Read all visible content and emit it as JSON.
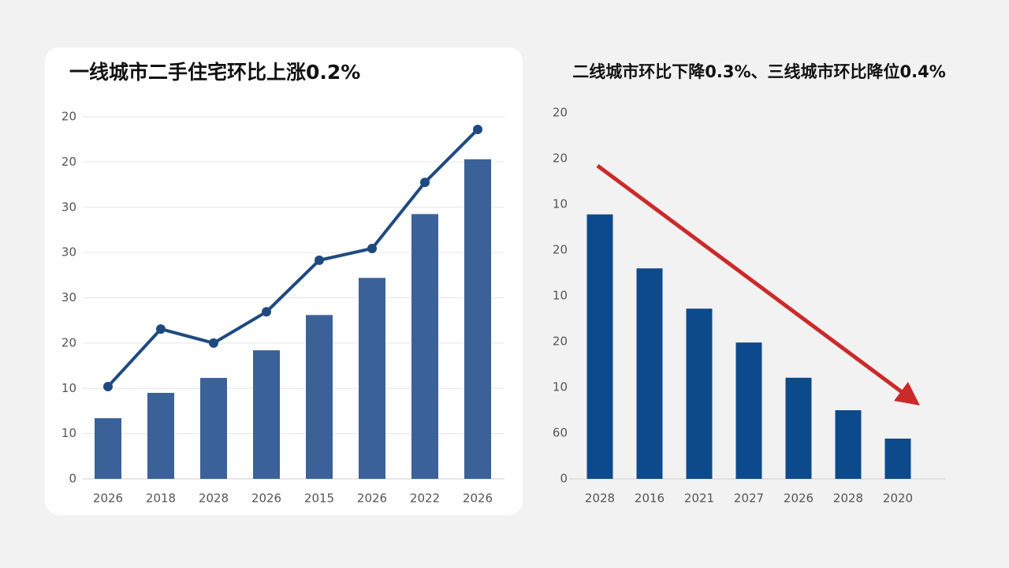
{
  "chart_data": [
    {
      "type": "bar",
      "title": "一线城市二手住宅环比上涨0.2%",
      "categories": [
        "2026",
        "2018",
        "2028",
        "2026",
        "2015",
        "2026",
        "2022",
        "2026"
      ],
      "series": [
        {
          "type": "bar",
          "color": "#3a6298",
          "values": [
            1.34,
            1.9,
            2.23,
            2.84,
            3.62,
            4.44,
            5.85,
            7.06
          ]
        },
        {
          "type": "line",
          "color": "#1f4a80",
          "values": [
            2.04,
            3.31,
            3.0,
            3.69,
            4.83,
            5.09,
            6.55,
            7.72
          ]
        }
      ],
      "ylim": [
        0,
        8
      ],
      "yticks": [
        0,
        {
          "value": 1,
          "label": "10"
        },
        {
          "value": 2,
          "label": "10"
        },
        {
          "value": 3,
          "label": "20"
        },
        {
          "value": 4,
          "label": "30"
        },
        {
          "value": 5,
          "label": "30"
        },
        {
          "value": 6,
          "label": "30"
        },
        {
          "value": 7,
          "label": "20"
        },
        {
          "value": 8,
          "label": "20"
        }
      ],
      "grid": true
    },
    {
      "type": "bar",
      "title": "二线城市环比下降0.3%、三线城市环比降位0.4%",
      "categories": [
        "2028",
        "2016",
        "2021",
        "2027",
        "2026",
        "2028",
        "2020"
      ],
      "series": [
        {
          "type": "bar",
          "color": "#0d4a8c",
          "values": [
            5.78,
            4.6,
            3.72,
            2.98,
            2.21,
            1.5,
            0.88
          ]
        }
      ],
      "ylim": [
        0,
        8
      ],
      "yticks": [
        0,
        {
          "value": 1,
          "label": "60"
        },
        {
          "value": 2,
          "label": "10"
        },
        {
          "value": 3,
          "label": "20"
        },
        {
          "value": 4,
          "label": "10"
        },
        {
          "value": 5,
          "label": "20"
        },
        {
          "value": 6,
          "label": "10"
        },
        {
          "value": 7,
          "label": "20"
        },
        {
          "value": 8,
          "label": "20"
        }
      ],
      "grid": false
    }
  ]
}
